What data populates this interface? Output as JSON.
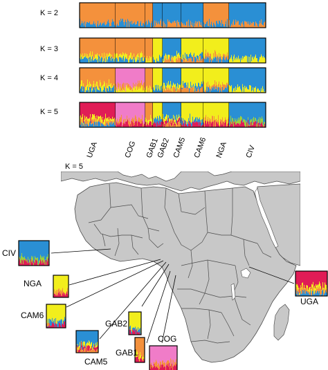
{
  "colors": {
    "orange": "#f4913c",
    "blue": "#2a8fd4",
    "yellow": "#f2ee1c",
    "green": "#9ccf3a",
    "pink": "#f07cc8",
    "red": "#e01c56",
    "land": "#c8c8c8",
    "ocean": "#ffffff",
    "border": "#4a4a4a"
  },
  "panels": [
    {
      "label": "K = 2",
      "k": 2
    },
    {
      "label": "K = 3",
      "k": 3
    },
    {
      "label": "K = 4",
      "k": 4
    },
    {
      "label": "K = 5",
      "k": 5
    }
  ],
  "populations": [
    "UGA",
    "COG",
    "GAB1",
    "GAB2",
    "CAM5",
    "CAM6",
    "NGA",
    "CIV"
  ],
  "map": {
    "title": "K = 5",
    "insets": [
      {
        "label": "CIV"
      },
      {
        "label": "NGA"
      },
      {
        "label": "CAM6"
      },
      {
        "label": "GAB2"
      },
      {
        "label": "CAM5"
      },
      {
        "label": "GAB1"
      },
      {
        "label": "COG"
      },
      {
        "label": "UGA"
      }
    ]
  }
}
